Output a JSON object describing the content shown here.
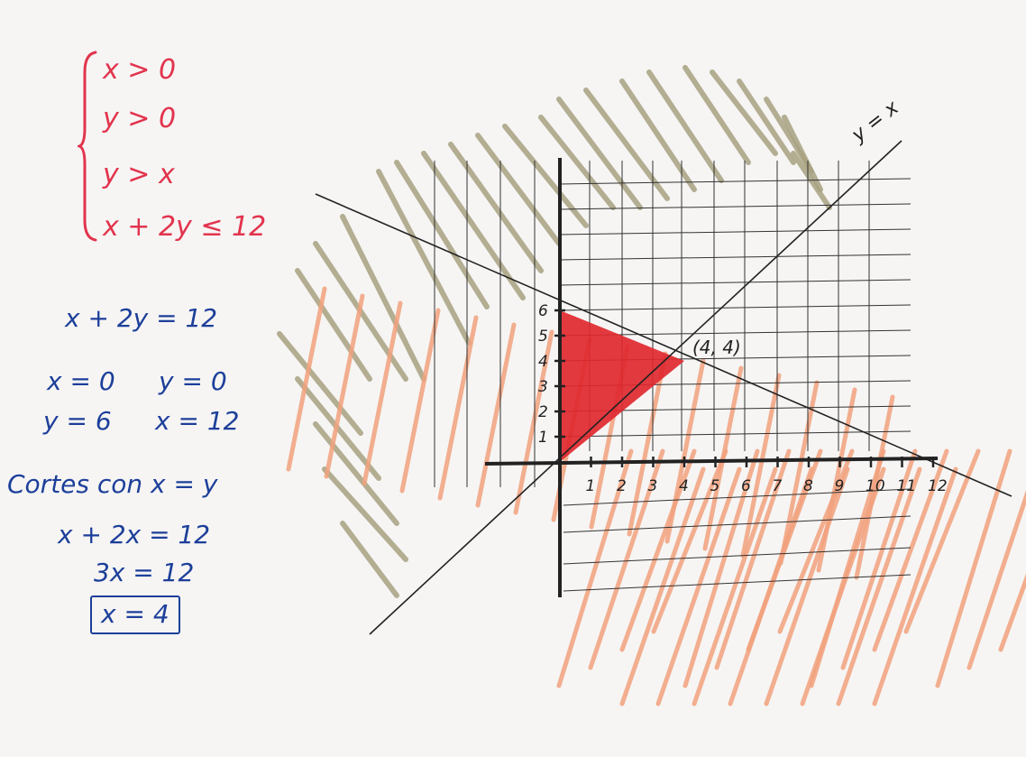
{
  "system": {
    "inequalities": [
      "x > 0",
      "y > 0",
      "y > x",
      "x + 2y ≤ 12"
    ]
  },
  "work": {
    "line_equation": "x + 2y = 12",
    "intercept_a_given": "x = 0",
    "intercept_a_result": "y = 6",
    "intercept_b_given": "y = 0",
    "intercept_b_result": "x = 12",
    "cuts_title": "Cortes con x = y",
    "step1": "x + 2x = 12",
    "step2": "3x = 12",
    "answer": "x = 4"
  },
  "graph": {
    "line_label": "y = x",
    "intersection_label": "(4, 4)",
    "x_ticks": [
      "1",
      "2",
      "3",
      "4",
      "5",
      "6",
      "7",
      "8",
      "9",
      "10",
      "11",
      "12"
    ],
    "y_ticks": [
      "1",
      "2",
      "3",
      "4",
      "5",
      "6"
    ],
    "feasible_region": [
      [
        0,
        0
      ],
      [
        4,
        4
      ],
      [
        0,
        6
      ]
    ],
    "colors": {
      "feasible": "#e0282f",
      "hatch_orange": "#f2a27e",
      "hatch_olive": "#a8a281",
      "axes": "#222222",
      "grid": "#333333",
      "ink_red": "#e2344d",
      "ink_blue": "#1d3f9a"
    }
  }
}
